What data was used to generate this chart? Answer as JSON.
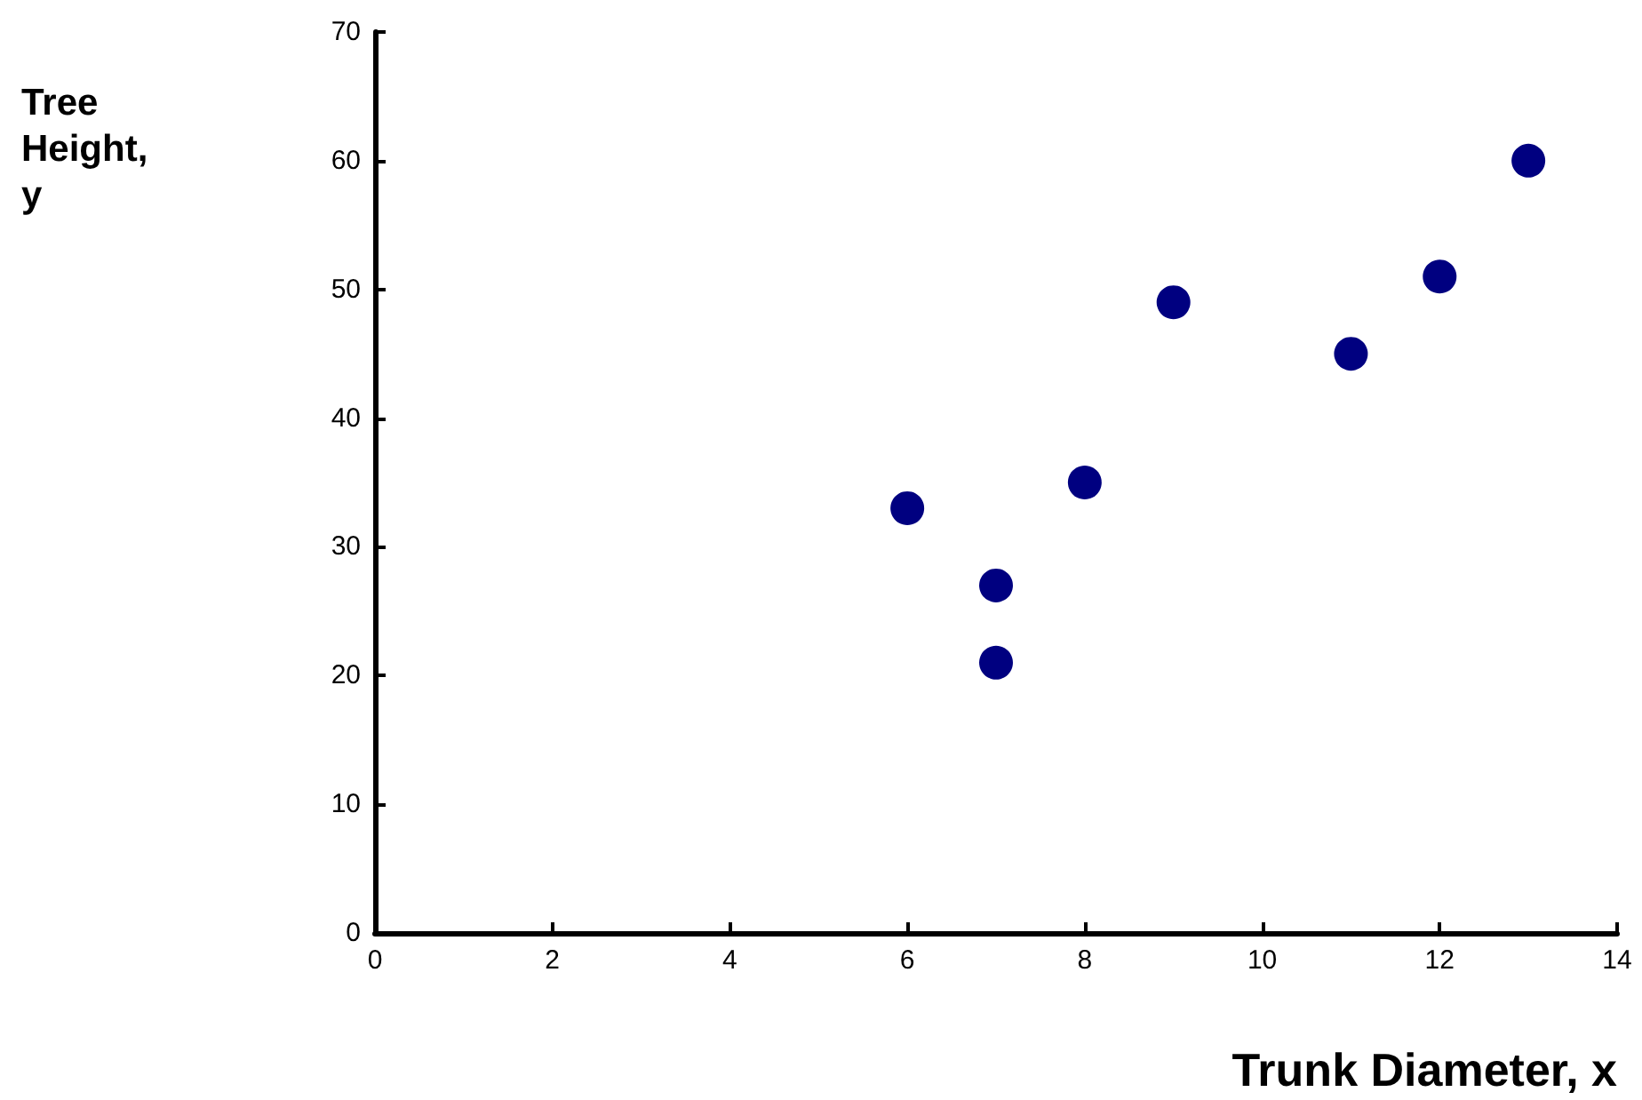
{
  "chart_data": {
    "type": "scatter",
    "xlabel": "Trunk Diameter, x",
    "ylabel": "Tree\nHeight,\ny",
    "x": [
      6,
      7,
      7,
      8,
      9,
      11,
      12,
      13
    ],
    "series": [
      {
        "color": "#000080",
        "values": [
          33,
          27,
          21,
          35,
          49,
          45,
          51,
          60
        ]
      }
    ],
    "xlim": [
      0,
      14
    ],
    "xticks": [
      0,
      2,
      4,
      6,
      8,
      10,
      12,
      14
    ],
    "ylim": [
      0,
      70
    ],
    "yticks": [
      0,
      10,
      20,
      30,
      40,
      50,
      60,
      70
    ],
    "grid": false,
    "marker": "circle"
  }
}
